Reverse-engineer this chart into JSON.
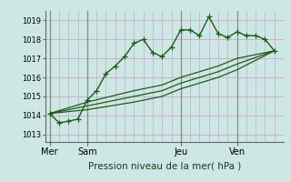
{
  "bg_color": "#cde8e4",
  "grid_color": "#c8a8c8",
  "line_color": "#1a5c1a",
  "title": "Pression niveau de la mer( hPa )",
  "ylabel_vals": [
    1013,
    1014,
    1015,
    1016,
    1017,
    1018,
    1019
  ],
  "ylim": [
    1012.6,
    1019.5
  ],
  "day_labels": [
    "Mer",
    "Sam",
    "Jeu",
    "Ven"
  ],
  "day_positions": [
    0,
    4,
    14,
    20
  ],
  "line1_x": [
    0,
    1,
    2,
    3,
    4,
    5,
    6,
    7,
    8,
    9,
    10,
    11,
    12,
    13,
    14,
    15,
    16,
    17,
    18,
    19,
    20,
    21,
    22,
    23,
    24
  ],
  "line1_y": [
    1014.1,
    1013.6,
    1013.7,
    1013.8,
    1014.8,
    1015.3,
    1016.2,
    1016.6,
    1017.1,
    1017.8,
    1018.0,
    1017.3,
    1017.1,
    1017.6,
    1018.5,
    1018.5,
    1018.2,
    1019.2,
    1018.3,
    1018.1,
    1018.4,
    1018.2,
    1018.2,
    1018.0,
    1017.4
  ],
  "line2_x": [
    0,
    4,
    9,
    12,
    14,
    18,
    20,
    24
  ],
  "line2_y": [
    1014.1,
    1014.7,
    1015.3,
    1015.6,
    1016.0,
    1016.6,
    1017.0,
    1017.4
  ],
  "line3_x": [
    0,
    4,
    9,
    12,
    14,
    18,
    20,
    24
  ],
  "line3_y": [
    1014.1,
    1014.5,
    1015.0,
    1015.3,
    1015.7,
    1016.3,
    1016.7,
    1017.4
  ],
  "line4_x": [
    0,
    4,
    9,
    12,
    14,
    18,
    20,
    24
  ],
  "line4_y": [
    1014.1,
    1014.3,
    1014.7,
    1015.0,
    1015.4,
    1016.0,
    1016.4,
    1017.4
  ],
  "vline_positions": [
    0,
    4,
    14,
    20
  ],
  "xlim": [
    -0.5,
    25.0
  ]
}
